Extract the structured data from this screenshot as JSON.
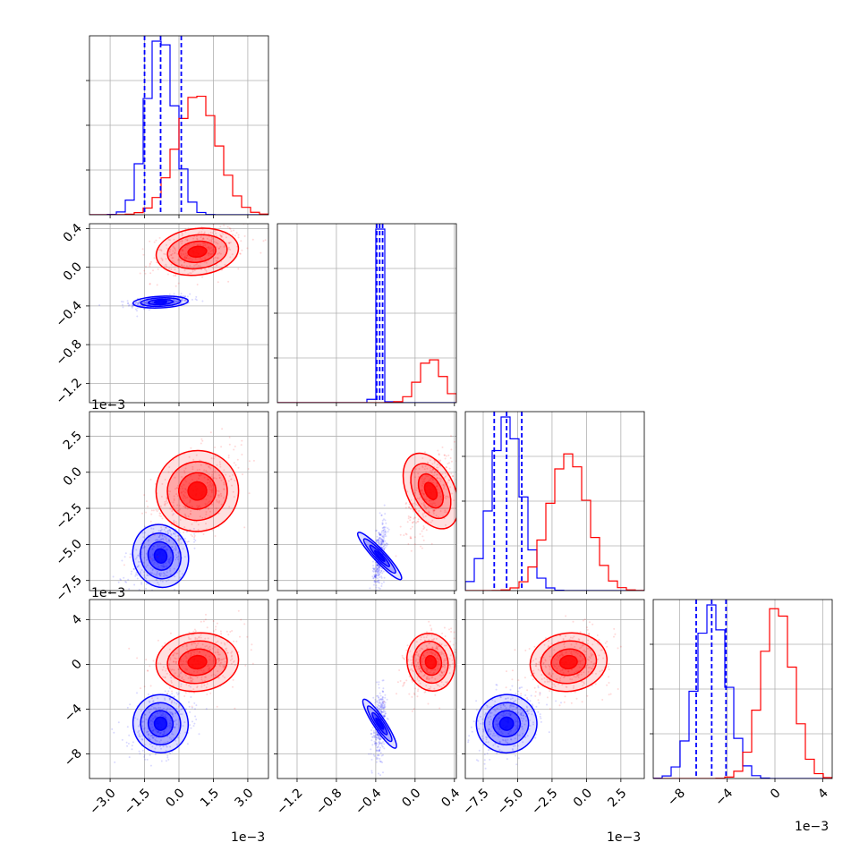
{
  "colors": {
    "series_a": "#0000ff",
    "series_b": "#ff0000",
    "grid": "#b0b0b0"
  },
  "chart_data": {
    "type": "scatter",
    "layout": "corner-plot",
    "grid": true,
    "legend": "none",
    "n_params": 4,
    "series": [
      {
        "color": "#0000ff",
        "mean": [
          -0.8,
          -0.36,
          -5.8,
          -5.3
        ],
        "sd": [
          0.6,
          0.03,
          1.1,
          1.3
        ],
        "quantile_lines": [
          [
            -1.5,
            -0.8,
            0.1
          ],
          [
            -0.39,
            -0.36,
            -0.33
          ],
          [
            -6.7,
            -5.8,
            -4.7
          ],
          [
            -6.6,
            -5.3,
            -4.1
          ]
        ]
      },
      {
        "color": "#ff0000",
        "mean": [
          0.8,
          0.16,
          -1.3,
          0.2
        ],
        "sd": [
          0.9,
          0.12,
          1.4,
          1.3
        ],
        "quantile_lines": null
      }
    ],
    "axes": [
      {
        "lim": [
          -3.9,
          3.9
        ],
        "ticks": [
          -3.0,
          -1.5,
          0.0,
          1.5,
          3.0
        ],
        "tick_labels": [
          "−3.0",
          "−1.5",
          "0.0",
          "1.5",
          "3.0"
        ],
        "offset_label": "1e−3"
      },
      {
        "lim": [
          -1.4,
          0.42
        ],
        "ticks": [
          -1.2,
          -0.8,
          -0.4,
          0.0,
          0.4
        ],
        "tick_labels": [
          "−1.2",
          "−0.8",
          "−0.4",
          "0.0",
          "0.4"
        ],
        "offset_label": "1e−3"
      },
      {
        "lim": [
          -8.8,
          4.2
        ],
        "ticks": [
          -7.5,
          -5.0,
          -2.5,
          0.0,
          2.5
        ],
        "tick_labels": [
          "−7.5",
          "−5.0",
          "−2.5",
          "0.0",
          "2.5"
        ],
        "offset_label": "1e−3"
      },
      {
        "lim": [
          -10.2,
          4.8
        ],
        "ticks": [
          -8,
          -4,
          0,
          4
        ],
        "tick_labels": [
          "−8",
          "−4",
          "0",
          "4"
        ],
        "offset_label": "1e−3"
      }
    ],
    "y_ticks_row": [
      null,
      {
        "lim": [
          -1.4,
          0.45
        ],
        "ticks": [
          0.4,
          0.0,
          -0.4,
          -0.8,
          -1.2
        ],
        "tick_labels": [
          "0.4",
          "0.0",
          "−0.4",
          "−0.8",
          "−1.2"
        ]
      },
      {
        "lim": [
          -8.2,
          4.2
        ],
        "ticks": [
          2.5,
          0.0,
          -2.5,
          -5.0,
          -7.5
        ],
        "tick_labels": [
          "2.5",
          "0.0",
          "−2.5",
          "−5.0",
          "−7.5"
        ]
      },
      {
        "lim": [
          -10.2,
          5.8
        ],
        "ticks": [
          4,
          0,
          -4,
          -8
        ],
        "tick_labels": [
          "4",
          "0",
          "−4",
          "−8"
        ]
      }
    ],
    "offset_labels_left": [
      "1e−3",
      "1e−3"
    ],
    "offset_labels_bottom": [
      "1e−3",
      "1e−3",
      "1e−3"
    ]
  }
}
